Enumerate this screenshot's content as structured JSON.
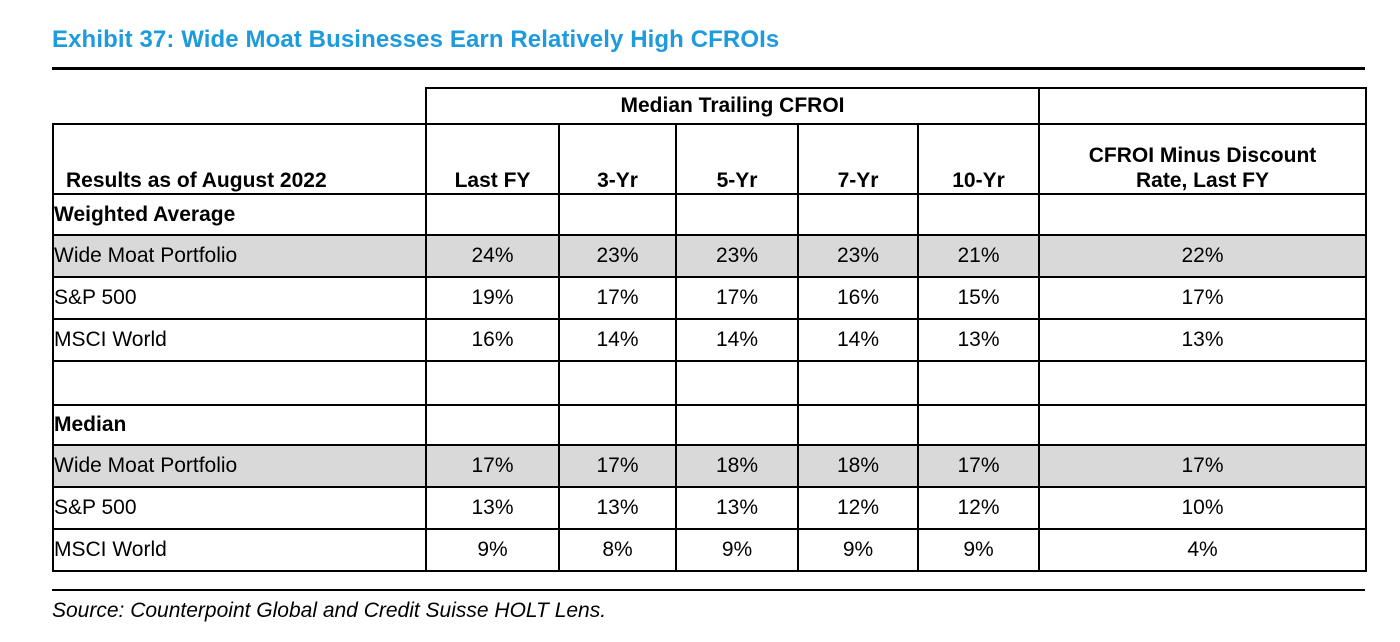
{
  "title": "Exhibit 37: Wide Moat Businesses Earn Relatively High CFROIs",
  "source_note": "Source: Counterpoint Global and Credit Suisse HOLT Lens.",
  "colors": {
    "title_blue": "#1E9BDC",
    "shaded_row": "#D9D9D9",
    "border": "#000000"
  },
  "chart_data": {
    "type": "table",
    "title": "Exhibit 37: Wide Moat Businesses Earn Relatively High CFROIs",
    "group_header": "Median Trailing CFROI",
    "columns": [
      "Results as of August 2022",
      "Last FY",
      "3-Yr",
      "5-Yr",
      "7-Yr",
      "10-Yr",
      "CFROI Minus Discount Rate, Last FY"
    ],
    "col7_lines": [
      "CFROI Minus Discount",
      "Rate, Last FY"
    ],
    "sections": [
      {
        "label": "Weighted Average",
        "rows": [
          {
            "label": "Wide Moat Portfolio",
            "shaded": true,
            "values": [
              "24%",
              "23%",
              "23%",
              "23%",
              "21%",
              "22%"
            ]
          },
          {
            "label": "S&P 500",
            "shaded": false,
            "values": [
              "19%",
              "17%",
              "17%",
              "16%",
              "15%",
              "17%"
            ]
          },
          {
            "label": "MSCI World",
            "shaded": false,
            "values": [
              "16%",
              "14%",
              "14%",
              "14%",
              "13%",
              "13%"
            ]
          }
        ]
      },
      {
        "label": "Median",
        "rows": [
          {
            "label": "Wide Moat Portfolio",
            "shaded": true,
            "values": [
              "17%",
              "17%",
              "18%",
              "18%",
              "17%",
              "17%"
            ]
          },
          {
            "label": "S&P 500",
            "shaded": false,
            "values": [
              "13%",
              "13%",
              "13%",
              "12%",
              "12%",
              "10%"
            ]
          },
          {
            "label": "MSCI World",
            "shaded": false,
            "values": [
              "9%",
              "8%",
              "9%",
              "9%",
              "9%",
              "4%"
            ]
          }
        ]
      }
    ],
    "layout": {
      "group_header_spans": "Last FY through 10-Yr",
      "shaded_rows": "Wide Moat Portfolio rows",
      "grid": "all cells bordered, top-left header cell open"
    }
  }
}
